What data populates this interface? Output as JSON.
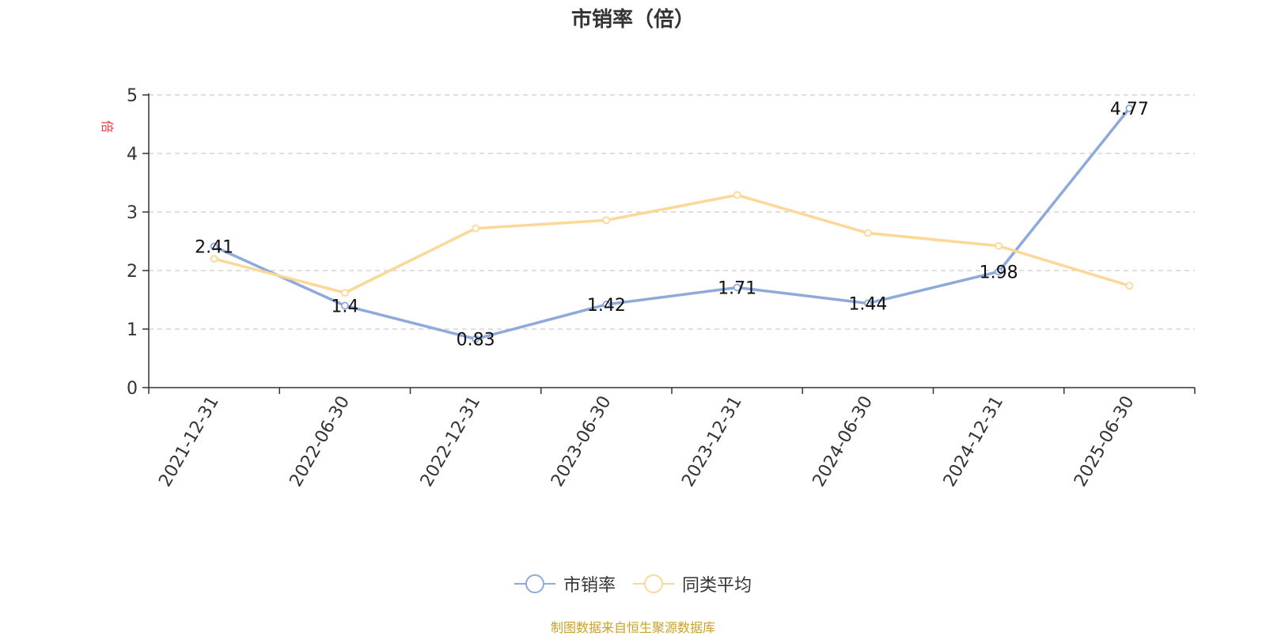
{
  "title": "市销率（倍）",
  "source_note": "制图数据来自恒生聚源数据库",
  "chart_data": {
    "type": "line",
    "title": "市销率（倍）",
    "ylabel": "倍",
    "xlabel": "",
    "ylim": [
      0,
      5
    ],
    "yticks": [
      0,
      1,
      2,
      3,
      4,
      5
    ],
    "grid": true,
    "legend_position": "bottom-center",
    "categories": [
      "2021-12-31",
      "2022-06-30",
      "2022-12-31",
      "2023-06-30",
      "2023-12-31",
      "2024-06-30",
      "2024-12-31",
      "2025-06-30"
    ],
    "series": [
      {
        "name": "市销率",
        "color": "#8eaadb",
        "show_labels": true,
        "values": [
          2.41,
          1.4,
          0.83,
          1.42,
          1.71,
          1.44,
          1.98,
          4.77
        ]
      },
      {
        "name": "同类平均",
        "color": "#fcd898",
        "show_labels": false,
        "values": [
          2.2,
          1.62,
          2.72,
          2.86,
          3.29,
          2.64,
          2.42,
          1.74
        ]
      }
    ]
  }
}
